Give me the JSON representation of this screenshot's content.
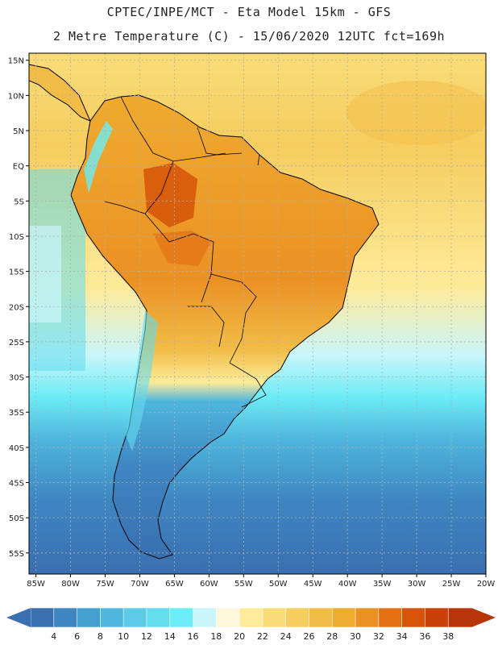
{
  "header": {
    "line1": "CPTEC/INPE/MCT -  Eta Model 15km - GFS",
    "line2": "2 Metre Temperature (C) - 15/06/2020 12UTC fct=169h"
  },
  "map": {
    "lon_range": [
      -86,
      -20
    ],
    "lat_range": [
      -58,
      16
    ],
    "lon_ticks": [
      "85W",
      "80W",
      "75W",
      "70W",
      "65W",
      "60W",
      "55W",
      "50W",
      "45W",
      "40W",
      "35W",
      "30W",
      "25W",
      "20W"
    ],
    "lat_ticks": [
      "15N",
      "10N",
      "5N",
      "EQ",
      "5S",
      "10S",
      "15S",
      "20S",
      "25S",
      "30S",
      "35S",
      "40S",
      "45S",
      "50S",
      "55S"
    ]
  },
  "colorbar": {
    "labels": [
      "4",
      "6",
      "8",
      "10",
      "12",
      "14",
      "16",
      "18",
      "20",
      "22",
      "24",
      "26",
      "28",
      "30",
      "32",
      "34",
      "36",
      "38"
    ],
    "colors": [
      "#3a6fb0",
      "#3e86c2",
      "#45a0d2",
      "#4fb6dd",
      "#5bcbe6",
      "#63dcee",
      "#6cecf6",
      "#c9f5fb",
      "#fff7dc",
      "#fdeb9a",
      "#f9dc78",
      "#f6cd5e",
      "#f2bd47",
      "#efab2e",
      "#eb9124",
      "#e37014",
      "#d55408",
      "#c8400a",
      "#b83409"
    ]
  }
}
